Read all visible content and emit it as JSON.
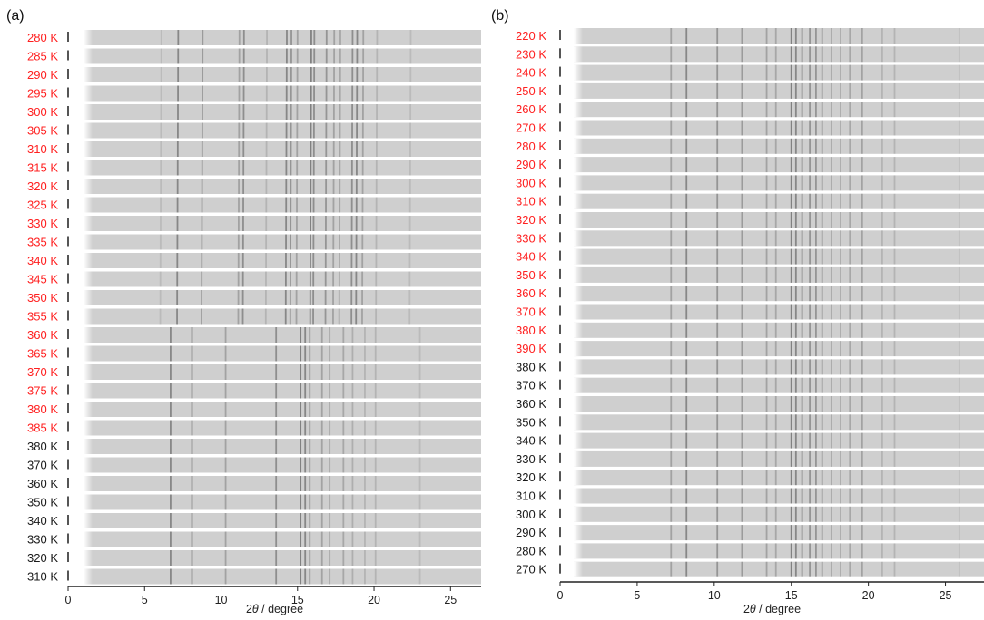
{
  "colors": {
    "heating": "#ff2020",
    "cooling": "#1a1a1a",
    "stripe": "#cfcfcf",
    "line": "#4d4d4d"
  },
  "chart_data": [
    {
      "type": "heatmap",
      "panel_label": "(a)",
      "xlabel_prefix": "2",
      "xlabel_symbol": "θ",
      "xlabel_suffix": " / degree",
      "xlim": [
        0,
        27
      ],
      "xticks": [
        "0",
        "5",
        "10",
        "15",
        "20",
        "25"
      ],
      "rows": [
        {
          "label": "280 K",
          "phase": "heating"
        },
        {
          "label": "285 K",
          "phase": "heating"
        },
        {
          "label": "290 K",
          "phase": "heating"
        },
        {
          "label": "295 K",
          "phase": "heating"
        },
        {
          "label": "300 K",
          "phase": "heating"
        },
        {
          "label": "305 K",
          "phase": "heating"
        },
        {
          "label": "310 K",
          "phase": "heating"
        },
        {
          "label": "315 K",
          "phase": "heating"
        },
        {
          "label": "320 K",
          "phase": "heating"
        },
        {
          "label": "325 K",
          "phase": "heating"
        },
        {
          "label": "330 K",
          "phase": "heating"
        },
        {
          "label": "335 K",
          "phase": "heating"
        },
        {
          "label": "340 K",
          "phase": "heating"
        },
        {
          "label": "345 K",
          "phase": "heating"
        },
        {
          "label": "350 K",
          "phase": "heating"
        },
        {
          "label": "355 K",
          "phase": "heating"
        },
        {
          "label": "360 K",
          "phase": "heating"
        },
        {
          "label": "365 K",
          "phase": "heating"
        },
        {
          "label": "370 K",
          "phase": "heating"
        },
        {
          "label": "375 K",
          "phase": "heating"
        },
        {
          "label": "380 K",
          "phase": "heating"
        },
        {
          "label": "385 K",
          "phase": "heating"
        },
        {
          "label": "380 K",
          "phase": "cooling"
        },
        {
          "label": "370 K",
          "phase": "cooling"
        },
        {
          "label": "360 K",
          "phase": "cooling"
        },
        {
          "label": "350 K",
          "phase": "cooling"
        },
        {
          "label": "340 K",
          "phase": "cooling"
        },
        {
          "label": "330 K",
          "phase": "cooling"
        },
        {
          "label": "320 K",
          "phase": "cooling"
        },
        {
          "label": "310 K",
          "phase": "cooling"
        }
      ],
      "peak_sets": {
        "low_temp": [
          [
            6.1,
            0.15
          ],
          [
            7.2,
            0.55
          ],
          [
            8.8,
            0.4
          ],
          [
            11.2,
            0.35
          ],
          [
            11.5,
            0.5
          ],
          [
            13.0,
            0.2
          ],
          [
            14.3,
            0.55
          ],
          [
            14.6,
            0.45
          ],
          [
            15.0,
            0.35
          ],
          [
            15.9,
            0.6
          ],
          [
            16.1,
            0.5
          ],
          [
            16.9,
            0.45
          ],
          [
            17.4,
            0.35
          ],
          [
            17.8,
            0.3
          ],
          [
            18.6,
            0.5
          ],
          [
            18.9,
            0.55
          ],
          [
            19.3,
            0.35
          ],
          [
            20.2,
            0.2
          ],
          [
            22.4,
            0.15
          ]
        ],
        "high_temp": [
          [
            6.7,
            0.55
          ],
          [
            8.1,
            0.5
          ],
          [
            10.3,
            0.35
          ],
          [
            13.6,
            0.5
          ],
          [
            15.2,
            0.6
          ],
          [
            15.5,
            0.55
          ],
          [
            15.8,
            0.45
          ],
          [
            16.6,
            0.35
          ],
          [
            17.1,
            0.35
          ],
          [
            18.0,
            0.3
          ],
          [
            18.6,
            0.25
          ],
          [
            19.4,
            0.2
          ],
          [
            20.1,
            0.2
          ],
          [
            23.0,
            0.15
          ]
        ]
      },
      "switch_row": 16
    },
    {
      "type": "heatmap",
      "panel_label": "(b)",
      "xlabel_prefix": "2",
      "xlabel_symbol": "θ",
      "xlabel_suffix": " / degree",
      "xlim": [
        0,
        27.5
      ],
      "xticks": [
        "0",
        "5",
        "10",
        "15",
        "20",
        "25"
      ],
      "rows": [
        {
          "label": "220 K",
          "phase": "heating"
        },
        {
          "label": "230 K",
          "phase": "heating"
        },
        {
          "label": "240 K",
          "phase": "heating"
        },
        {
          "label": "250 K",
          "phase": "heating"
        },
        {
          "label": "260 K",
          "phase": "heating"
        },
        {
          "label": "270 K",
          "phase": "heating"
        },
        {
          "label": "280 K",
          "phase": "heating"
        },
        {
          "label": "290 K",
          "phase": "heating"
        },
        {
          "label": "300 K",
          "phase": "heating"
        },
        {
          "label": "310 K",
          "phase": "heating"
        },
        {
          "label": "320 K",
          "phase": "heating"
        },
        {
          "label": "330 K",
          "phase": "heating"
        },
        {
          "label": "340 K",
          "phase": "heating"
        },
        {
          "label": "350 K",
          "phase": "heating"
        },
        {
          "label": "360 K",
          "phase": "heating"
        },
        {
          "label": "370 K",
          "phase": "heating"
        },
        {
          "label": "380 K",
          "phase": "heating"
        },
        {
          "label": "390 K",
          "phase": "heating"
        },
        {
          "label": "380 K",
          "phase": "cooling"
        },
        {
          "label": "370 K",
          "phase": "cooling"
        },
        {
          "label": "360 K",
          "phase": "cooling"
        },
        {
          "label": "350 K",
          "phase": "cooling"
        },
        {
          "label": "340 K",
          "phase": "cooling"
        },
        {
          "label": "330 K",
          "phase": "cooling"
        },
        {
          "label": "320 K",
          "phase": "cooling"
        },
        {
          "label": "310 K",
          "phase": "cooling"
        },
        {
          "label": "300 K",
          "phase": "cooling"
        },
        {
          "label": "290 K",
          "phase": "cooling"
        },
        {
          "label": "280 K",
          "phase": "cooling"
        },
        {
          "label": "270 K",
          "phase": "cooling"
        }
      ],
      "peak_sets": {
        "all": [
          [
            7.2,
            0.35
          ],
          [
            8.2,
            0.55
          ],
          [
            10.2,
            0.45
          ],
          [
            11.8,
            0.4
          ],
          [
            13.4,
            0.35
          ],
          [
            14.0,
            0.3
          ],
          [
            15.0,
            0.6
          ],
          [
            15.3,
            0.55
          ],
          [
            15.7,
            0.5
          ],
          [
            16.2,
            0.45
          ],
          [
            16.6,
            0.45
          ],
          [
            17.0,
            0.4
          ],
          [
            17.6,
            0.35
          ],
          [
            18.2,
            0.3
          ],
          [
            18.8,
            0.3
          ],
          [
            19.6,
            0.35
          ],
          [
            20.9,
            0.2
          ],
          [
            21.7,
            0.2
          ],
          [
            25.9,
            0.12
          ]
        ]
      },
      "switch_row": 99
    }
  ]
}
